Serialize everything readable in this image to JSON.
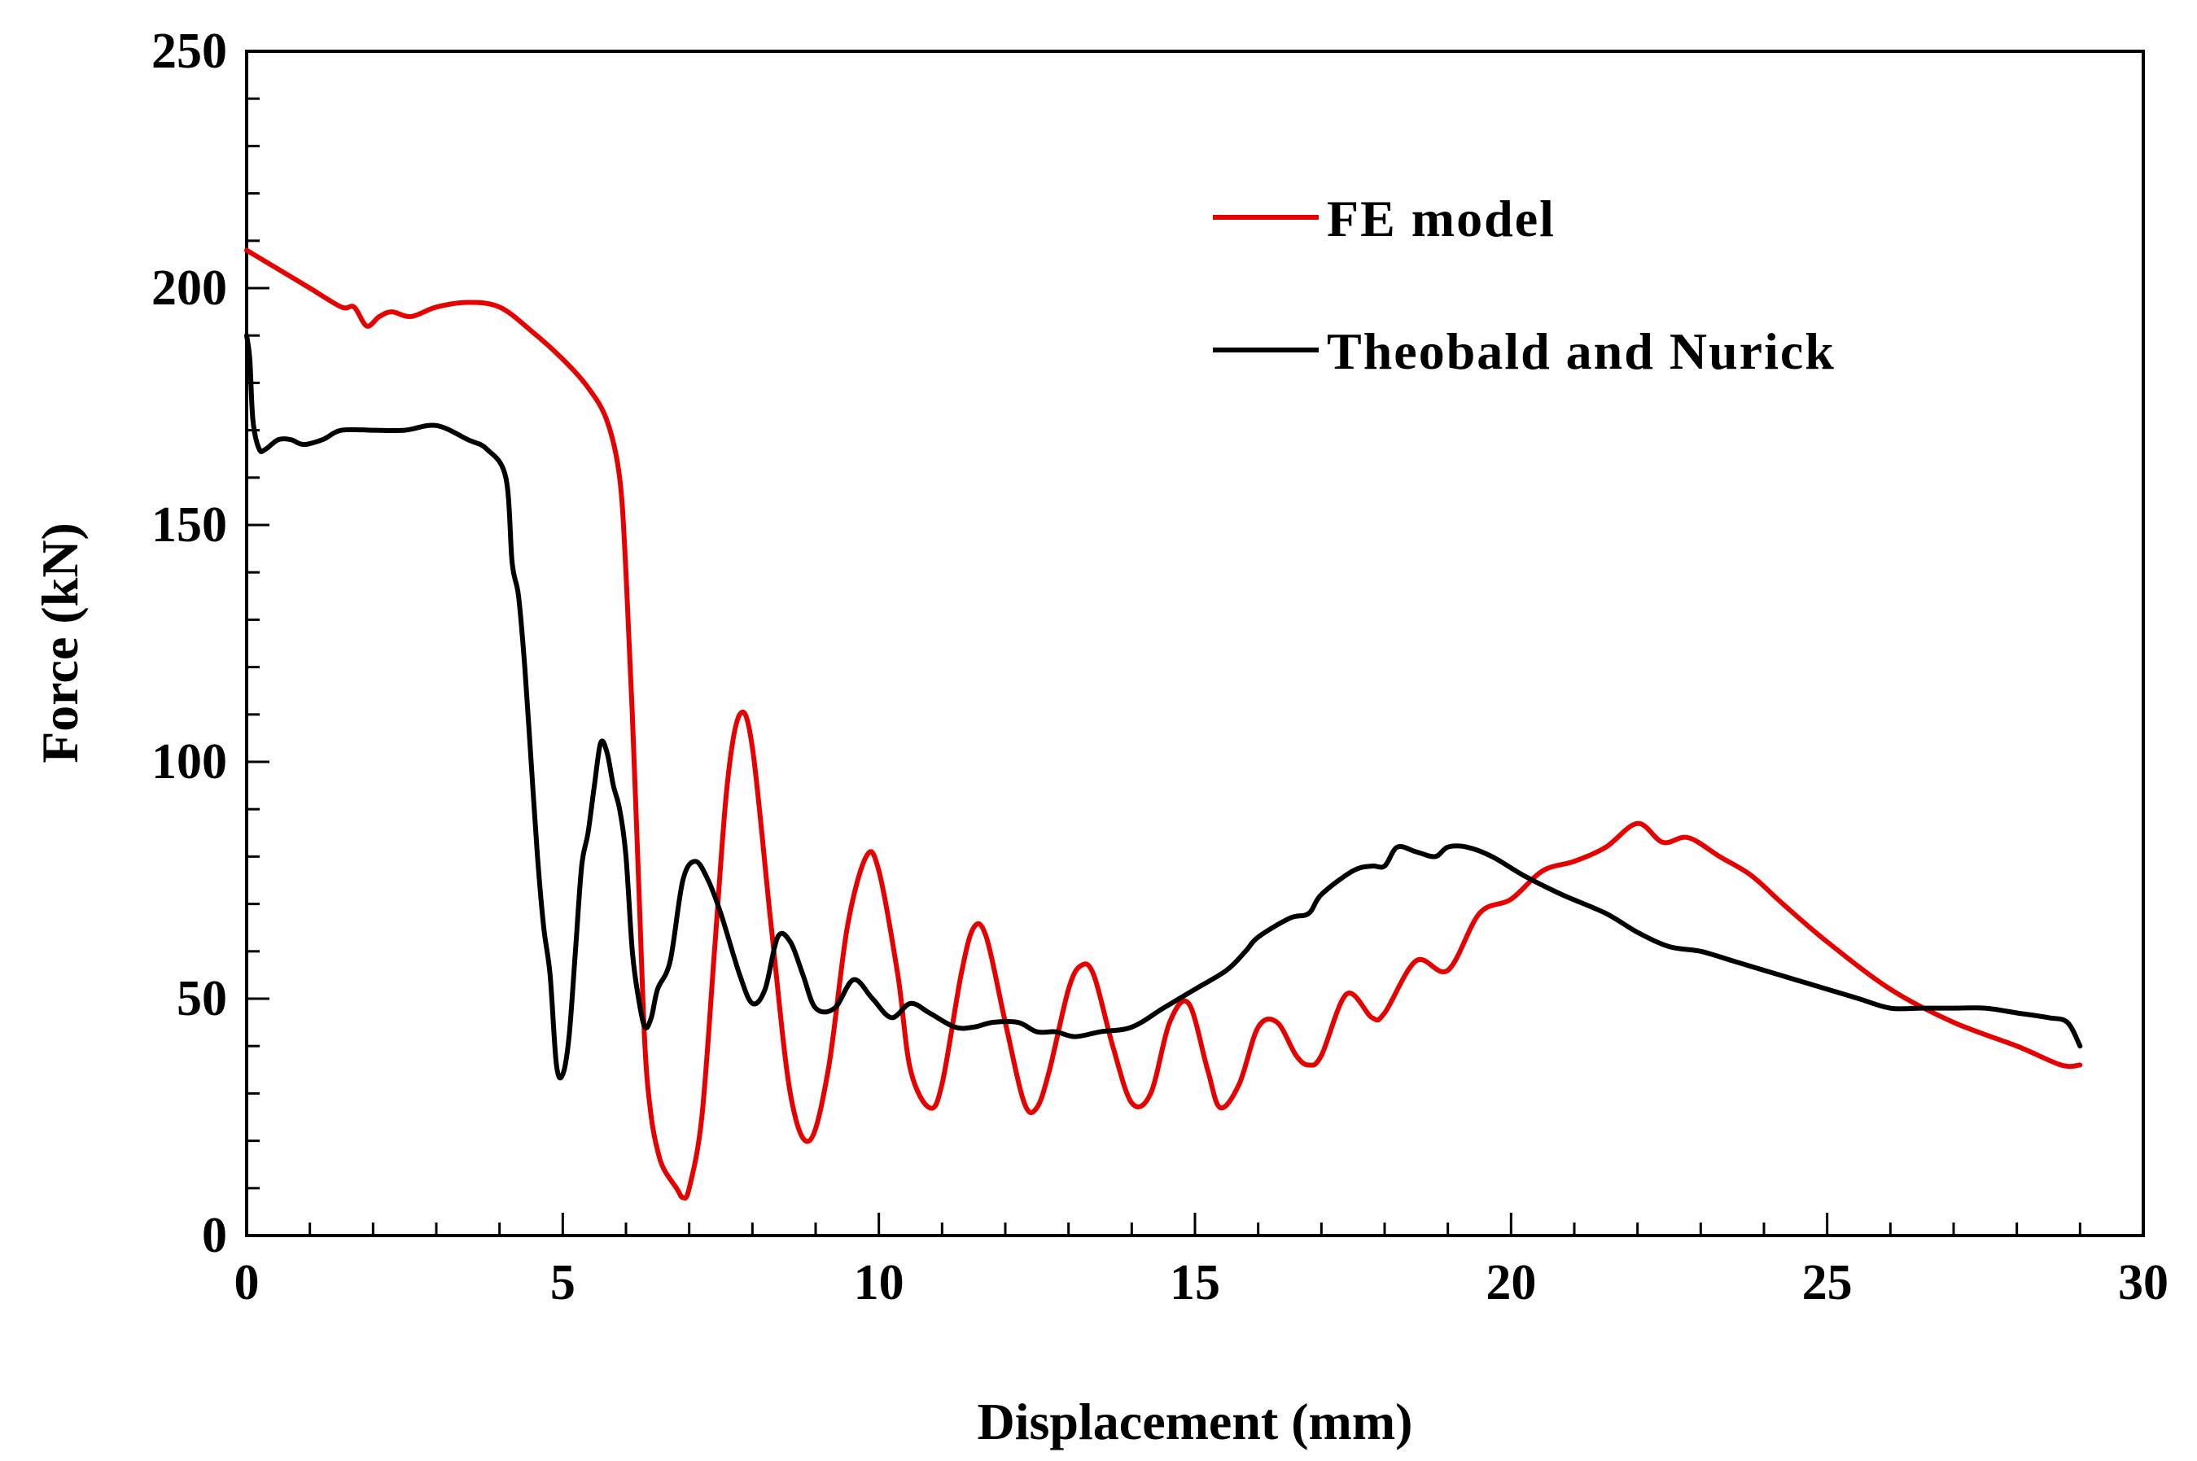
{
  "chart_data": {
    "type": "line",
    "title": "",
    "xlabel": "Displacement (mm)",
    "ylabel": "Force (kN)",
    "xlim": [
      0,
      30
    ],
    "ylim": [
      0,
      250
    ],
    "x_ticks": [
      0,
      5,
      10,
      15,
      20,
      25,
      30
    ],
    "y_ticks": [
      0,
      50,
      100,
      150,
      200,
      250
    ],
    "x_minor_step": 1,
    "y_minor_step": 10,
    "grid": false,
    "legend_position": "upper-right",
    "series": [
      {
        "name": "FE model",
        "color": "#e60000",
        "x": [
          0,
          0.5,
          1.0,
          1.5,
          1.7,
          1.9,
          2.1,
          2.3,
          2.6,
          3.0,
          3.5,
          4.0,
          4.5,
          5.0,
          5.4,
          5.7,
          5.9,
          6.0,
          6.1,
          6.2,
          6.3,
          6.4,
          6.5,
          6.6,
          6.8,
          6.9,
          7.0,
          7.2,
          7.4,
          7.6,
          7.8,
          8.0,
          8.3,
          8.6,
          8.9,
          9.2,
          9.5,
          9.8,
          10.0,
          10.3,
          10.5,
          10.8,
          11.0,
          11.3,
          11.5,
          11.7,
          12.0,
          12.3,
          12.5,
          12.7,
          13.0,
          13.2,
          13.4,
          13.7,
          14.0,
          14.3,
          14.6,
          14.9,
          15.2,
          15.4,
          15.7,
          16.0,
          16.3,
          16.6,
          16.8,
          17.0,
          17.4,
          17.8,
          18.0,
          18.5,
          19.0,
          19.5,
          20.0,
          20.5,
          21.0,
          21.5,
          22.0,
          22.4,
          22.8,
          23.3,
          23.8,
          24.3,
          25.0,
          26.0,
          27.0,
          28.0,
          28.7,
          29.0
        ],
        "y": [
          208,
          204,
          200,
          196,
          196,
          192,
          194,
          195,
          194,
          196,
          197,
          196,
          191,
          185,
          179,
          172,
          160,
          140,
          110,
          75,
          40,
          25,
          18,
          14,
          10,
          8,
          10,
          25,
          60,
          95,
          110,
          103,
          65,
          30,
          20,
          35,
          65,
          80,
          77,
          55,
          35,
          27,
          32,
          55,
          65,
          63,
          45,
          28,
          27,
          35,
          52,
          57,
          55,
          40,
          28,
          30,
          45,
          49,
          35,
          27,
          32,
          44,
          45,
          38,
          36,
          38,
          51,
          46,
          47,
          58,
          56,
          68,
          71,
          77,
          79,
          82,
          87,
          83,
          84,
          80,
          76,
          70,
          62,
          52,
          45,
          40,
          36,
          36
        ]
      },
      {
        "name": "Theobald and Nurick",
        "color": "#000000",
        "x": [
          0,
          0.05,
          0.1,
          0.2,
          0.3,
          0.5,
          0.7,
          0.9,
          1.2,
          1.5,
          2.0,
          2.5,
          3.0,
          3.5,
          3.8,
          4.1,
          4.2,
          4.3,
          4.4,
          4.5,
          4.6,
          4.7,
          4.8,
          4.9,
          5.0,
          5.1,
          5.2,
          5.3,
          5.4,
          5.5,
          5.6,
          5.7,
          5.8,
          5.9,
          6.0,
          6.1,
          6.2,
          6.3,
          6.4,
          6.5,
          6.7,
          6.9,
          7.1,
          7.3,
          7.5,
          7.8,
          8.0,
          8.2,
          8.4,
          8.6,
          8.8,
          9.0,
          9.3,
          9.6,
          9.9,
          10.2,
          10.5,
          10.8,
          11.2,
          11.5,
          11.8,
          12.2,
          12.5,
          12.8,
          13.1,
          13.5,
          14.0,
          14.5,
          15.0,
          15.5,
          15.8,
          16.0,
          16.5,
          16.8,
          17.0,
          17.5,
          17.8,
          18.0,
          18.2,
          18.5,
          18.8,
          19.0,
          19.3,
          19.7,
          20.2,
          20.8,
          21.5,
          22.0,
          22.5,
          23.0,
          23.5,
          24.0,
          24.5,
          25.0,
          25.5,
          26.0,
          26.5,
          27.0,
          27.5,
          28.0,
          28.5,
          28.8,
          29.0
        ],
        "y": [
          190,
          185,
          172,
          166,
          166,
          168,
          168,
          167,
          168,
          170,
          170,
          170,
          171,
          168,
          166,
          160,
          142,
          135,
          120,
          100,
          80,
          65,
          55,
          36,
          34,
          42,
          60,
          78,
          85,
          95,
          104,
          102,
          95,
          90,
          80,
          60,
          50,
          44,
          46,
          52,
          58,
          75,
          79,
          75,
          68,
          55,
          49,
          52,
          63,
          62,
          55,
          48,
          48,
          54,
          50,
          46,
          49,
          47,
          44,
          44,
          45,
          45,
          43,
          43,
          42,
          43,
          44,
          48,
          52,
          56,
          60,
          63,
          67,
          68,
          72,
          77,
          78,
          78,
          82,
          81,
          80,
          82,
          82,
          80,
          76,
          72,
          68,
          64,
          61,
          60,
          58,
          56,
          54,
          52,
          50,
          48,
          48,
          48,
          48,
          47,
          46,
          45,
          40
        ]
      }
    ]
  }
}
